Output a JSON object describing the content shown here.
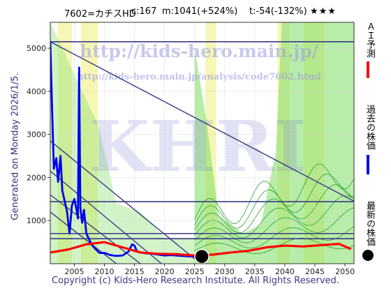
{
  "header": {
    "code": "7602=カチスHD",
    "c": "c:167",
    "m": "m:1041(+524%)",
    "t": "t:-54(-132%)",
    "stars": "★★★"
  },
  "side_label": "Generated on Monday 2026/1/5.",
  "footer": "Copyright (c) Kids-Hero Research Institute. All Rights Reserved.",
  "watermarks": {
    "url1": "http://kids-hero.main.jp/",
    "url2": "http://kids-hero.main.jp/analysis/code7602.html",
    "big": "KHRI"
  },
  "legend": {
    "ai": "ＡＩ予測",
    "past": "過去の株価",
    "latest": "最新の株価"
  },
  "colors": {
    "ai": "#ff0000",
    "past": "#0000ee",
    "latest": "#000000",
    "trend": "#3b3b86",
    "band_green": "#7ddc62",
    "band_yellow": "#f4f4a8"
  },
  "chart_data": {
    "type": "line",
    "x_ticks": [
      2005,
      2010,
      2015,
      2020,
      2025,
      2030,
      2035,
      2040,
      2045,
      2050
    ],
    "y_ticks": [
      1000,
      2000,
      3000,
      4000,
      5000
    ],
    "xlim": [
      2001,
      2051.5
    ],
    "ylim": [
      0,
      5600
    ],
    "grid": true,
    "series": [
      {
        "name": "過去の株価",
        "x": [
          2001.0,
          2001.3,
          2001.6,
          2002.0,
          2002.3,
          2002.7,
          2003.0,
          2003.4,
          2003.8,
          2004.2,
          2004.6,
          2005.0,
          2005.3,
          2005.6,
          2005.8,
          2006.0,
          2006.3,
          2006.6,
          2007.0,
          2007.5,
          2008.0,
          2008.6,
          2009.2,
          2010.0,
          2011.0,
          2012.0,
          2013.0,
          2014.0,
          2014.6,
          2015.0,
          2015.4,
          2016.0,
          2017.0,
          2018.0,
          2019.0,
          2020.0,
          2021.0,
          2022.0,
          2023.0,
          2024.0,
          2025.0
        ],
        "y": [
          5150,
          3600,
          2200,
          2450,
          1900,
          2500,
          1700,
          1450,
          1200,
          700,
          1350,
          1500,
          1300,
          1050,
          4550,
          1300,
          950,
          1250,
          700,
          550,
          420,
          330,
          250,
          250,
          200,
          180,
          190,
          280,
          450,
          420,
          290,
          260,
          240,
          230,
          210,
          190,
          200,
          190,
          180,
          170,
          167
        ]
      },
      {
        "name": "ＡＩ予測",
        "x": [
          2001,
          2004,
          2007,
          2010,
          2013,
          2016,
          2019,
          2022,
          2025,
          2028,
          2031,
          2034,
          2037,
          2040,
          2043,
          2046,
          2049,
          2051
        ],
        "y": [
          260,
          330,
          450,
          500,
          380,
          260,
          230,
          220,
          190,
          210,
          260,
          300,
          380,
          420,
          400,
          430,
          460,
          340
        ]
      }
    ],
    "latest_point": {
      "x": 2026.2,
      "y": 167
    }
  }
}
